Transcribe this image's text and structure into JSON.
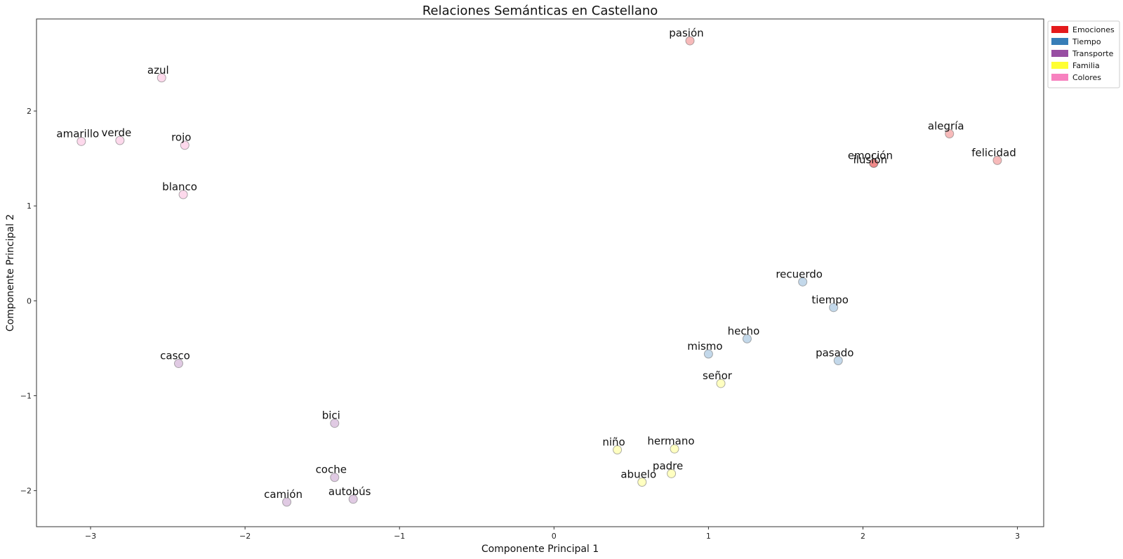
{
  "chart_data": {
    "type": "scatter",
    "title": "Relaciones Semánticas en Castellano",
    "xlabel": "Componente Principal 1",
    "ylabel": "Componente Principal 2",
    "xlim": [
      -3.35,
      3.17
    ],
    "ylim": [
      -2.38,
      2.97
    ],
    "xticks": [
      -3,
      -2,
      -1,
      0,
      1,
      2,
      3
    ],
    "xtick_labels": [
      "−3",
      "−2",
      "−1",
      "0",
      "1",
      "2",
      "3"
    ],
    "yticks": [
      -2,
      -1,
      0,
      1,
      2
    ],
    "ytick_labels": [
      "−2",
      "−1",
      "0",
      "1",
      "2"
    ],
    "grid": false,
    "legend_position": "outside-top-right",
    "categories": [
      {
        "name": "Emociones",
        "color": "#e41a1c"
      },
      {
        "name": "Tiempo",
        "color": "#377eb8"
      },
      {
        "name": "Transporte",
        "color": "#984ea3"
      },
      {
        "name": "Familia",
        "color": "#ffff33"
      },
      {
        "name": "Colores",
        "color": "#f781bf"
      }
    ],
    "points": [
      {
        "label": "pasión",
        "x": 0.88,
        "y": 2.74,
        "category": "Emociones"
      },
      {
        "label": "alegría",
        "x": 2.56,
        "y": 1.76,
        "category": "Emociones"
      },
      {
        "label": "emoción",
        "x": 2.07,
        "y": 1.45,
        "category": "Emociones"
      },
      {
        "label": "ilusión",
        "x": 2.07,
        "y": 1.45,
        "category": "Emociones"
      },
      {
        "label": "felicidad",
        "x": 2.87,
        "y": 1.48,
        "category": "Emociones"
      },
      {
        "label": "recuerdo",
        "x": 1.61,
        "y": 0.2,
        "category": "Tiempo"
      },
      {
        "label": "tiempo",
        "x": 1.81,
        "y": -0.07,
        "category": "Tiempo"
      },
      {
        "label": "hecho",
        "x": 1.25,
        "y": -0.4,
        "category": "Tiempo"
      },
      {
        "label": "mismo",
        "x": 1.0,
        "y": -0.56,
        "category": "Tiempo"
      },
      {
        "label": "pasado",
        "x": 1.84,
        "y": -0.63,
        "category": "Tiempo"
      },
      {
        "label": "casco",
        "x": -2.43,
        "y": -0.66,
        "category": "Transporte"
      },
      {
        "label": "bici",
        "x": -1.42,
        "y": -1.29,
        "category": "Transporte"
      },
      {
        "label": "coche",
        "x": -1.42,
        "y": -1.86,
        "category": "Transporte"
      },
      {
        "label": "camión",
        "x": -1.73,
        "y": -2.12,
        "category": "Transporte"
      },
      {
        "label": "autobús",
        "x": -1.3,
        "y": -2.09,
        "category": "Transporte"
      },
      {
        "label": "señor",
        "x": 1.08,
        "y": -0.87,
        "category": "Familia"
      },
      {
        "label": "niño",
        "x": 0.41,
        "y": -1.57,
        "category": "Familia"
      },
      {
        "label": "hermano",
        "x": 0.78,
        "y": -1.56,
        "category": "Familia"
      },
      {
        "label": "padre",
        "x": 0.76,
        "y": -1.82,
        "category": "Familia"
      },
      {
        "label": "abuelo",
        "x": 0.57,
        "y": -1.91,
        "category": "Familia"
      },
      {
        "label": "azul",
        "x": -2.54,
        "y": 2.35,
        "category": "Colores"
      },
      {
        "label": "amarillo",
        "x": -3.06,
        "y": 1.68,
        "category": "Colores"
      },
      {
        "label": "verde",
        "x": -2.81,
        "y": 1.69,
        "category": "Colores"
      },
      {
        "label": "rojo",
        "x": -2.39,
        "y": 1.64,
        "category": "Colores"
      },
      {
        "label": "blanco",
        "x": -2.4,
        "y": 1.12,
        "category": "Colores"
      }
    ]
  }
}
